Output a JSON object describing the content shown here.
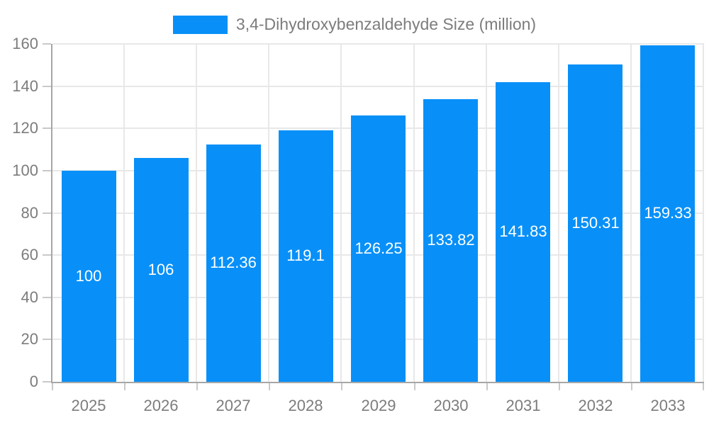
{
  "colors": {
    "bar": "#0890f8",
    "grid": "#e8e8e8",
    "axis_line": "#a6a6a6",
    "tick": "#c9c9c9",
    "axis_label": "#7c7c7c",
    "bar_label": "#ffffff",
    "background": "#ffffff"
  },
  "legend": {
    "label": "3,4-Dihydroxybenzaldehyde Size (million)"
  },
  "chart_data": {
    "type": "bar",
    "title": "3,4-Dihydroxybenzaldehyde Size (million)",
    "categories": [
      "2025",
      "2026",
      "2027",
      "2028",
      "2029",
      "2030",
      "2031",
      "2032",
      "2033"
    ],
    "values": [
      100,
      106,
      112.36,
      119.1,
      126.25,
      133.82,
      141.83,
      150.31,
      159.33
    ],
    "value_labels": [
      "100",
      "106",
      "112.36",
      "119.1",
      "126.25",
      "133.82",
      "141.83",
      "150.31",
      "159.33"
    ],
    "series": [
      {
        "name": "3,4-Dihydroxybenzaldehyde Size (million)",
        "values": [
          100,
          106,
          112.36,
          119.1,
          126.25,
          133.82,
          141.83,
          150.31,
          159.33
        ]
      }
    ],
    "xlabel": "",
    "ylabel": "",
    "ylim": [
      0,
      160
    ],
    "yticks": [
      0,
      20,
      40,
      60,
      80,
      100,
      120,
      140,
      160
    ],
    "grid": true,
    "legend_position": "top",
    "bar_value_labels_shown": true
  }
}
